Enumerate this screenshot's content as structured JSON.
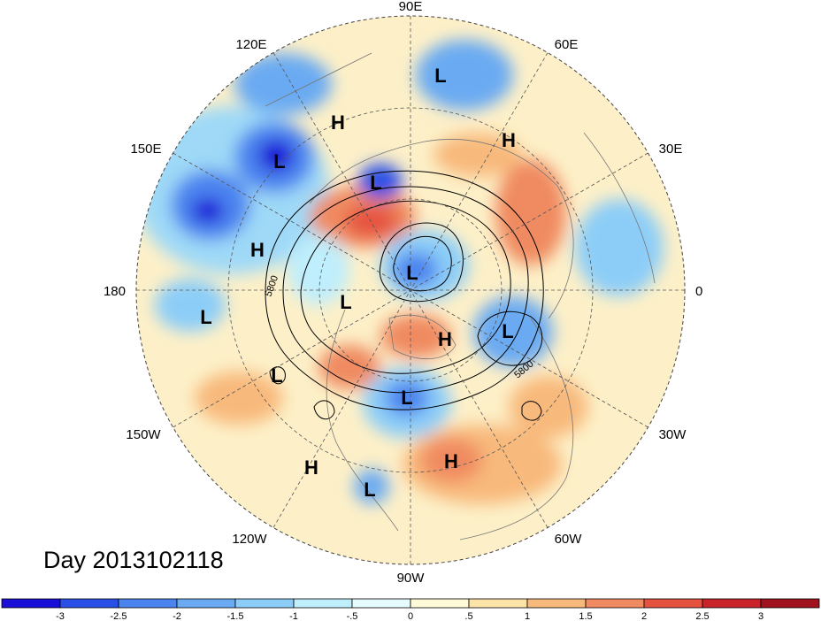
{
  "map": {
    "projection": "north-polar-stereographic",
    "longitude_labels": [
      "90E",
      "60E",
      "30E",
      "0",
      "30W",
      "60W",
      "90W",
      "120W",
      "150W",
      "180",
      "150E",
      "120E"
    ],
    "contour_labels": [
      "5800",
      "5800"
    ],
    "centers": [
      {
        "type": "L",
        "label": "L"
      },
      {
        "type": "L",
        "label": "L"
      },
      {
        "type": "L",
        "label": "L"
      },
      {
        "type": "L",
        "label": "L"
      },
      {
        "type": "L",
        "label": "L"
      },
      {
        "type": "L",
        "label": "L"
      },
      {
        "type": "L",
        "label": "L"
      },
      {
        "type": "L",
        "label": "L"
      },
      {
        "type": "L",
        "label": "L"
      },
      {
        "type": "L",
        "label": "L"
      },
      {
        "type": "H",
        "label": "H"
      },
      {
        "type": "H",
        "label": "H"
      },
      {
        "type": "H",
        "label": "H"
      },
      {
        "type": "H",
        "label": "H"
      },
      {
        "type": "H",
        "label": "H"
      },
      {
        "type": "H",
        "label": "H"
      }
    ]
  },
  "title": "Day 2013102118",
  "colorbar": {
    "colors": [
      "#1a0fd6",
      "#2a4fe6",
      "#4b84ef",
      "#6aaaf2",
      "#8ccdf8",
      "#bfeefc",
      "#e6fbfe",
      "#fffbd8",
      "#fce3a8",
      "#f8b97c",
      "#f08a60",
      "#e5523f",
      "#c9242a",
      "#a0121e"
    ],
    "tick_labels": [
      "-3",
      "-2.5",
      "-2",
      "-1.5",
      "-1",
      "-.5",
      "0",
      ".5",
      "1",
      "1.5",
      "2",
      "2.5",
      "3"
    ]
  }
}
